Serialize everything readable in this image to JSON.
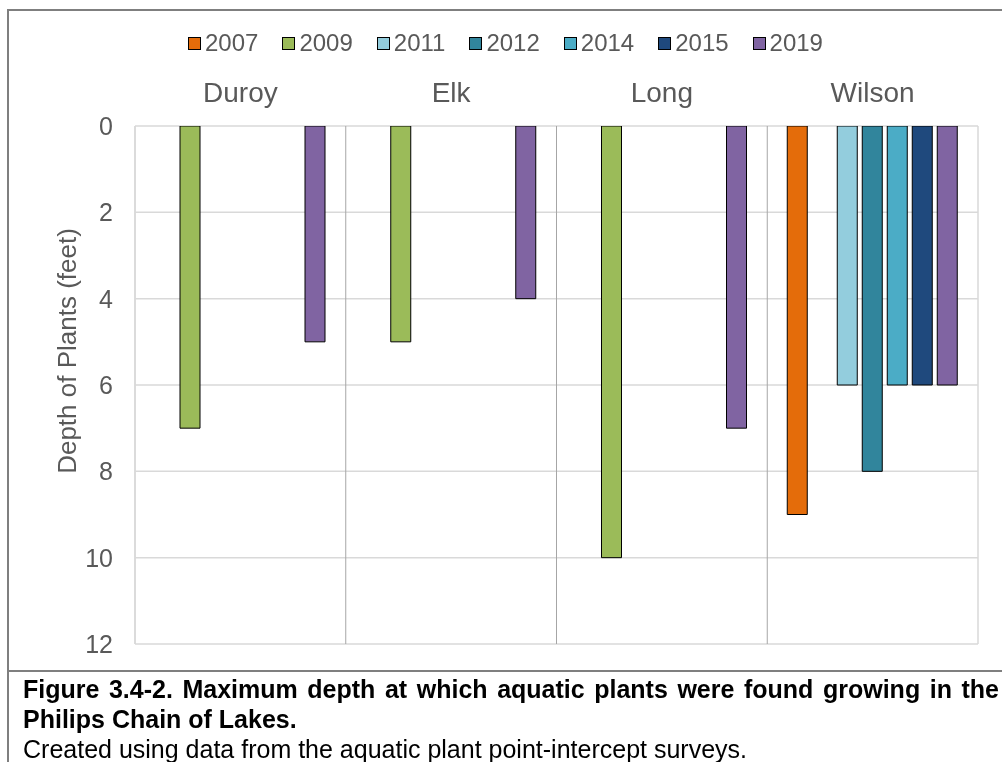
{
  "chart_data": {
    "type": "bar",
    "title": "Figure 3.4-2. Maximum depth at which aquatic plants were found growing in the Philips Chain of Lakes.",
    "annotations": [
      "Created using data from the aquatic plant point-intercept surveys."
    ],
    "ylabel": "Depth of Plants (feet)",
    "categories": [
      "Duroy",
      "Elk",
      "Long",
      "Wilson"
    ],
    "series": [
      {
        "name": "2007",
        "color": "#e46c0a",
        "values": [
          null,
          null,
          null,
          9
        ]
      },
      {
        "name": "2009",
        "color": "#9bbb59",
        "values": [
          7,
          5,
          10,
          null
        ]
      },
      {
        "name": "2011",
        "color": "#93cddd",
        "values": [
          null,
          null,
          null,
          6
        ]
      },
      {
        "name": "2012",
        "color": "#31859c",
        "values": [
          null,
          null,
          null,
          8
        ]
      },
      {
        "name": "2014",
        "color": "#4bacc6",
        "values": [
          null,
          null,
          null,
          6
        ]
      },
      {
        "name": "2015",
        "color": "#1f497d",
        "values": [
          null,
          null,
          null,
          6
        ]
      },
      {
        "name": "2019",
        "color": "#8064a2",
        "values": [
          5,
          4,
          7,
          6
        ]
      }
    ],
    "ylim": [
      12,
      0
    ],
    "yticks": [
      0,
      2,
      4,
      6,
      8,
      10,
      12
    ],
    "grid": true,
    "legend": "top"
  }
}
